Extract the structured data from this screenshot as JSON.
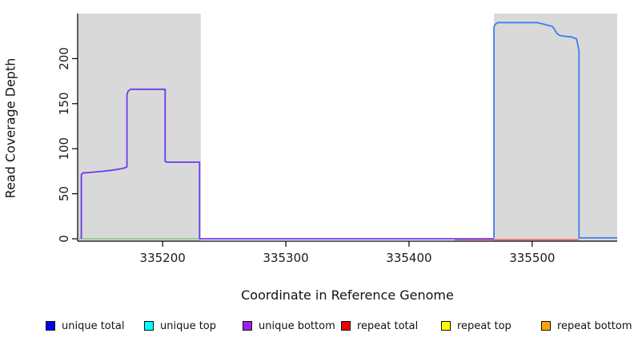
{
  "chart_data": {
    "type": "line",
    "title": "",
    "xlabel": "Coordinate in Reference Genome",
    "ylabel": "Read Coverage Depth",
    "x_range": [
      335131,
      335569
    ],
    "y_range": [
      0,
      250
    ],
    "x_ticks": [
      {
        "value": 335200,
        "label": "335200"
      },
      {
        "value": 335300,
        "label": "335300"
      },
      {
        "value": 335400,
        "label": "335400"
      },
      {
        "value": 335500,
        "label": "335500"
      }
    ],
    "y_ticks": [
      {
        "value": 0,
        "label": "0"
      },
      {
        "value": 50,
        "label": "50"
      },
      {
        "value": 100,
        "label": "100"
      },
      {
        "value": 150,
        "label": "150"
      },
      {
        "value": 200,
        "label": "200"
      }
    ],
    "grid": false,
    "legend_position": "bottom",
    "background_regions": [
      {
        "name": "shaded-region-left",
        "x0": 335131,
        "x1": 335231,
        "color": "#d9d9d9"
      },
      {
        "name": "shaded-region-right",
        "x0": 335469,
        "x1": 335569,
        "color": "#d9d9d9"
      }
    ],
    "series": [
      {
        "name": "baseline-green",
        "color": "#84c884",
        "width": 1.6,
        "points": [
          [
            335131,
            0
          ],
          [
            335230,
            0
          ]
        ]
      },
      {
        "name": "repeat-total",
        "color": "#ee5555",
        "width": 1.4,
        "points": [
          [
            335437,
            -1
          ],
          [
            335538,
            -1
          ]
        ]
      },
      {
        "name": "unique-bottom",
        "color": "#6b3aec",
        "width": 1.8,
        "points": [
          [
            335134,
            0
          ],
          [
            335134,
            71
          ],
          [
            335135,
            73
          ],
          [
            335144,
            74
          ],
          [
            335152,
            75
          ],
          [
            335158,
            76
          ],
          [
            335163,
            77
          ],
          [
            335167,
            78
          ],
          [
            335170,
            79
          ],
          [
            335171,
            80
          ],
          [
            335171,
            160
          ],
          [
            335172,
            164
          ],
          [
            335174,
            166
          ],
          [
            335202,
            166
          ],
          [
            335202,
            86
          ],
          [
            335204,
            85
          ],
          [
            335230,
            85
          ],
          [
            335230,
            0
          ],
          [
            335469,
            0
          ]
        ]
      },
      {
        "name": "unique-total",
        "color": "#3e7df2",
        "width": 1.8,
        "points": [
          [
            335469,
            1
          ],
          [
            335469,
            235
          ],
          [
            335470,
            238
          ],
          [
            335472,
            240
          ],
          [
            335504,
            240
          ],
          [
            335507,
            239
          ],
          [
            335510,
            238
          ],
          [
            335513,
            237
          ],
          [
            335516,
            236
          ],
          [
            335518,
            233
          ],
          [
            335520,
            228
          ],
          [
            335522,
            226
          ],
          [
            335525,
            225
          ],
          [
            335532,
            224
          ],
          [
            335534,
            223
          ],
          [
            335536,
            222
          ],
          [
            335537,
            215
          ],
          [
            335538,
            209
          ],
          [
            335538,
            1
          ],
          [
            335569,
            1
          ]
        ]
      }
    ]
  },
  "legend": {
    "items": [
      {
        "label": "unique total",
        "color": "#0000ee"
      },
      {
        "label": "unique top",
        "color": "#00ffff"
      },
      {
        "label": "unique bottom",
        "color": "#a020f0"
      },
      {
        "label": "repeat total",
        "color": "#ee0000"
      },
      {
        "label": "repeat top",
        "color": "#ffff00"
      },
      {
        "label": "repeat bottom",
        "color": "#ffa500"
      }
    ]
  },
  "style": {
    "axis_color": "#000000",
    "tick_label_color": "#1a1a1a",
    "plot_background": "#ffffff"
  }
}
